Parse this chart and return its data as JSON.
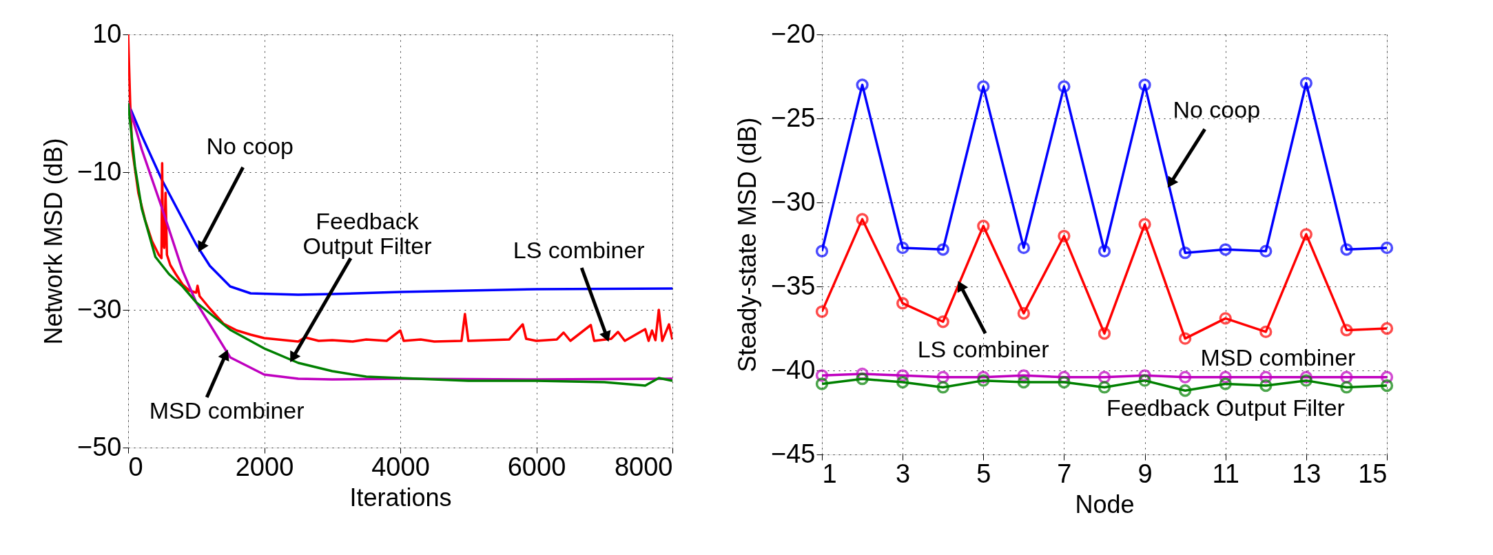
{
  "chart_data": [
    {
      "type": "line",
      "xlabel": "Iterations",
      "ylabel": "Network MSD (dB)",
      "xlim": [
        0,
        8000
      ],
      "ylim": [
        -50,
        10
      ],
      "xticks": [
        0,
        2000,
        4000,
        6000,
        8000
      ],
      "yticks": [
        -50,
        -30,
        -10,
        10
      ],
      "grid": true,
      "marker": "none",
      "line_style": "solid",
      "series": [
        {
          "color": "#0000ff",
          "x": [
            0,
            200,
            500,
            800,
            1000,
            1200,
            1500,
            1800,
            2500,
            3000,
            4000,
            5000,
            6000,
            8000
          ],
          "values": [
            0,
            -4.7,
            -11.2,
            -16.8,
            -20.5,
            -23.6,
            -26.6,
            -27.6,
            -27.8,
            -27.7,
            -27.4,
            -27.2,
            -27.0,
            -26.9
          ]
        },
        {
          "color": "#ff0000",
          "x": [
            0,
            30,
            60,
            150,
            250,
            350,
            450,
            490,
            500,
            510,
            530,
            550,
            570,
            620,
            700,
            800,
            900,
            1000,
            1020,
            1050,
            1200,
            1400,
            1600,
            1800,
            2000,
            2200,
            2500,
            2600,
            2800,
            3000,
            3300,
            3500,
            3800,
            4000,
            4050,
            4300,
            4500,
            4900,
            4950,
            5000,
            5300,
            5600,
            5800,
            5850,
            6000,
            6300,
            6400,
            6500,
            6800,
            6850,
            7100,
            7200,
            7300,
            7600,
            7650,
            7700,
            7750,
            7800,
            7850,
            7950,
            8000
          ],
          "values": [
            10,
            0,
            -6.7,
            -13,
            -17,
            -20,
            -22,
            -22.5,
            -8.7,
            -20,
            -21,
            -13,
            -22,
            -23.5,
            -24.8,
            -26.3,
            -27.2,
            -27.5,
            -26.5,
            -28,
            -29.8,
            -32,
            -33,
            -33.6,
            -34.1,
            -34.3,
            -34.6,
            -34.0,
            -34.5,
            -34.4,
            -34.6,
            -34.3,
            -34.5,
            -33.0,
            -34.5,
            -34.3,
            -34.6,
            -34.5,
            -30.6,
            -34.5,
            -34.4,
            -34.3,
            -32.1,
            -34.2,
            -34.5,
            -34.3,
            -33.3,
            -34.5,
            -32.2,
            -34.5,
            -34.2,
            -33.2,
            -34.5,
            -32.8,
            -34.5,
            -33.0,
            -34.4,
            -30.0,
            -34.5,
            -32.1,
            -34.3
          ]
        },
        {
          "color": "#bf00bf",
          "x": [
            0,
            200,
            500,
            800,
            1000,
            1500,
            2000,
            2500,
            3000,
            4000,
            6000,
            8000
          ],
          "values": [
            0,
            -6.7,
            -15.3,
            -24.3,
            -28.9,
            -36.9,
            -39.4,
            -40.0,
            -40.1,
            -40.0,
            -40.1,
            -40.0
          ]
        },
        {
          "color": "#008000",
          "x": [
            0,
            100,
            200,
            400,
            600,
            800,
            1000,
            1500,
            2000,
            2500,
            3000,
            3500,
            4000,
            5000,
            6000,
            7000,
            7600,
            7800,
            8000
          ],
          "values": [
            0,
            -9.2,
            -15.3,
            -22.3,
            -24.8,
            -26.6,
            -28.9,
            -32.9,
            -35.6,
            -37.7,
            -38.9,
            -39.7,
            -39.9,
            -40.3,
            -40.3,
            -40.5,
            -41.0,
            -39.9,
            -40.3
          ]
        }
      ],
      "annotations": [
        {
          "text": "No coop",
          "x": 1050,
          "y": -21.3
        },
        {
          "text": "Feedback\nOutput Filter",
          "x": 2400,
          "y": -37.3
        },
        {
          "text": "LS combiner",
          "x": 7050,
          "y": -34.3
        },
        {
          "text": "MSD combiner",
          "x": 1450,
          "y": -36.1
        }
      ]
    },
    {
      "type": "line",
      "xlabel": "Node",
      "ylabel": "Steady-state MSD (dB)",
      "xlim": [
        1,
        15
      ],
      "ylim": [
        -45,
        -20
      ],
      "xticks": [
        1,
        3,
        5,
        7,
        9,
        11,
        13,
        15
      ],
      "yticks": [
        -45,
        -40,
        -35,
        -30,
        -25,
        -20
      ],
      "grid": true,
      "marker": "circle",
      "line_style": "solid",
      "x": [
        1,
        2,
        3,
        4,
        5,
        6,
        7,
        8,
        9,
        10,
        11,
        12,
        13,
        14,
        15
      ],
      "series": [
        {
          "color": "#0000ff",
          "values": [
            -32.9,
            -23.0,
            -32.7,
            -32.8,
            -23.1,
            -32.7,
            -23.1,
            -32.9,
            -23.0,
            -33.0,
            -32.8,
            -32.9,
            -22.9,
            -32.8,
            -32.7
          ]
        },
        {
          "color": "#ff0000",
          "values": [
            -36.5,
            -31.0,
            -36.0,
            -37.1,
            -31.4,
            -36.6,
            -32.0,
            -37.8,
            -31.3,
            -38.1,
            -36.9,
            -37.7,
            -31.9,
            -37.6,
            -37.5
          ]
        },
        {
          "color": "#bf00bf",
          "values": [
            -40.3,
            -40.2,
            -40.3,
            -40.4,
            -40.4,
            -40.3,
            -40.4,
            -40.4,
            -40.3,
            -40.4,
            -40.4,
            -40.4,
            -40.4,
            -40.4,
            -40.4
          ]
        },
        {
          "color": "#008000",
          "values": [
            -40.8,
            -40.5,
            -40.7,
            -41.0,
            -40.6,
            -40.7,
            -40.7,
            -41.0,
            -40.6,
            -41.2,
            -40.8,
            -40.9,
            -40.6,
            -41.0,
            -40.9
          ]
        }
      ],
      "annotations": [
        {
          "text": "No coop",
          "x": 9.6,
          "y": -29.0
        },
        {
          "text": "LS combiner",
          "x": 4.4,
          "y": -34.8
        },
        "MSD combiner",
        "Feedback Output Filter"
      ]
    }
  ]
}
